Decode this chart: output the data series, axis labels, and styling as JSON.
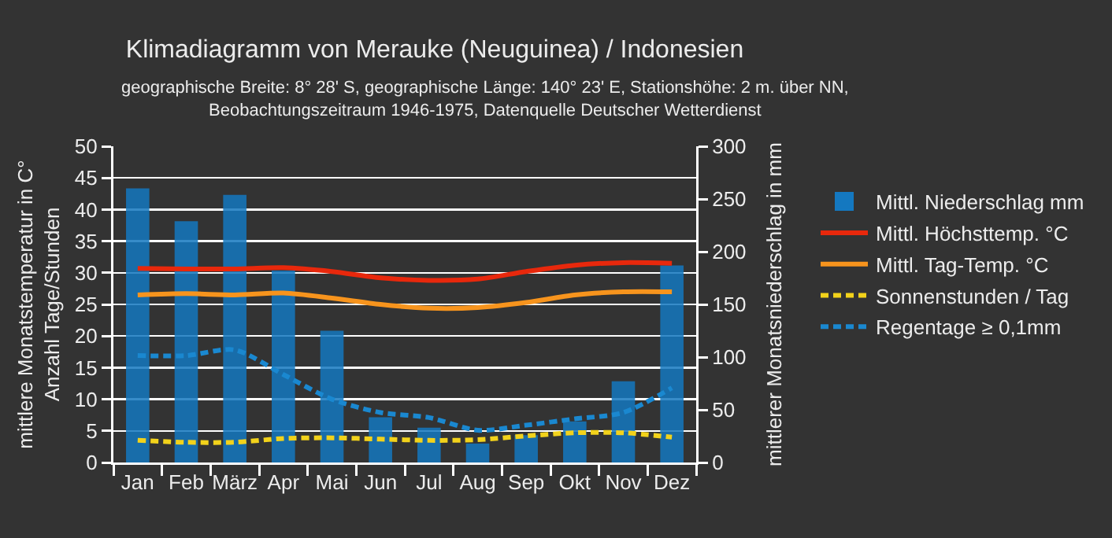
{
  "chart_data": {
    "type": "line",
    "title": "Klimadiagramm von Merauke (Neuguinea) / Indonesien",
    "subtitle": "geographische Breite: 8° 28' S, geographische Länge: 140° 23' E, Stationshöhe: 2 m. über NN,\nBeobachtungszeitraum 1946-1975, Datenquelle Deutscher Wetterdienst",
    "ylabel": "mittlere Monatstemperatur in C°\nAnzahl Tage/Stunden",
    "y2label": "mittlerer Monatsniederschlag in mm",
    "categories": [
      "Jan",
      "Feb",
      "März",
      "Apr",
      "Mai",
      "Jun",
      "Jul",
      "Aug",
      "Sep",
      "Okt",
      "Nov",
      "Dez"
    ],
    "series": [
      {
        "name": "Mittl. Niederschlag mm",
        "type": "bar",
        "axis": "y2",
        "color": "#1478c0",
        "values": [
          260,
          229,
          254,
          182,
          125,
          43,
          33,
          18,
          26,
          39,
          77,
          187
        ]
      },
      {
        "name": "Mittl. Höchsttemp. °C",
        "line_style": "solid",
        "color": "#e8280c",
        "values": [
          30.7,
          30.6,
          30.6,
          30.8,
          30.2,
          29.2,
          28.8,
          29.0,
          30.2,
          31.2,
          31.6,
          31.5
        ]
      },
      {
        "name": "Mittl. Tag-Temp. °C",
        "line_style": "solid",
        "color": "#f7941d",
        "values": [
          26.5,
          26.7,
          26.5,
          26.8,
          26.0,
          25.0,
          24.4,
          24.5,
          25.3,
          26.5,
          27.0,
          27.0
        ]
      },
      {
        "name": "Sonnenstunden / Tag",
        "line_style": "dashed",
        "color": "#f2d21b",
        "values": [
          3.5,
          3.2,
          3.2,
          3.8,
          3.9,
          3.7,
          3.5,
          3.6,
          4.2,
          4.7,
          4.7,
          4.0
        ]
      },
      {
        "name": "Regentage ≥ 0,1mm",
        "line_style": "dashed",
        "color": "#1a88d0",
        "values": [
          16.9,
          16.9,
          17.8,
          13.9,
          10.0,
          7.9,
          7.1,
          5.1,
          5.9,
          6.9,
          7.9,
          11.8
        ]
      }
    ],
    "ylim": [
      0,
      50
    ],
    "yticks": [
      0,
      5,
      10,
      15,
      20,
      25,
      30,
      35,
      40,
      45,
      50
    ],
    "y2lim": [
      0,
      300
    ],
    "y2ticks": [
      0,
      50,
      100,
      150,
      200,
      250,
      300
    ],
    "grid": "y",
    "legend": "right"
  }
}
